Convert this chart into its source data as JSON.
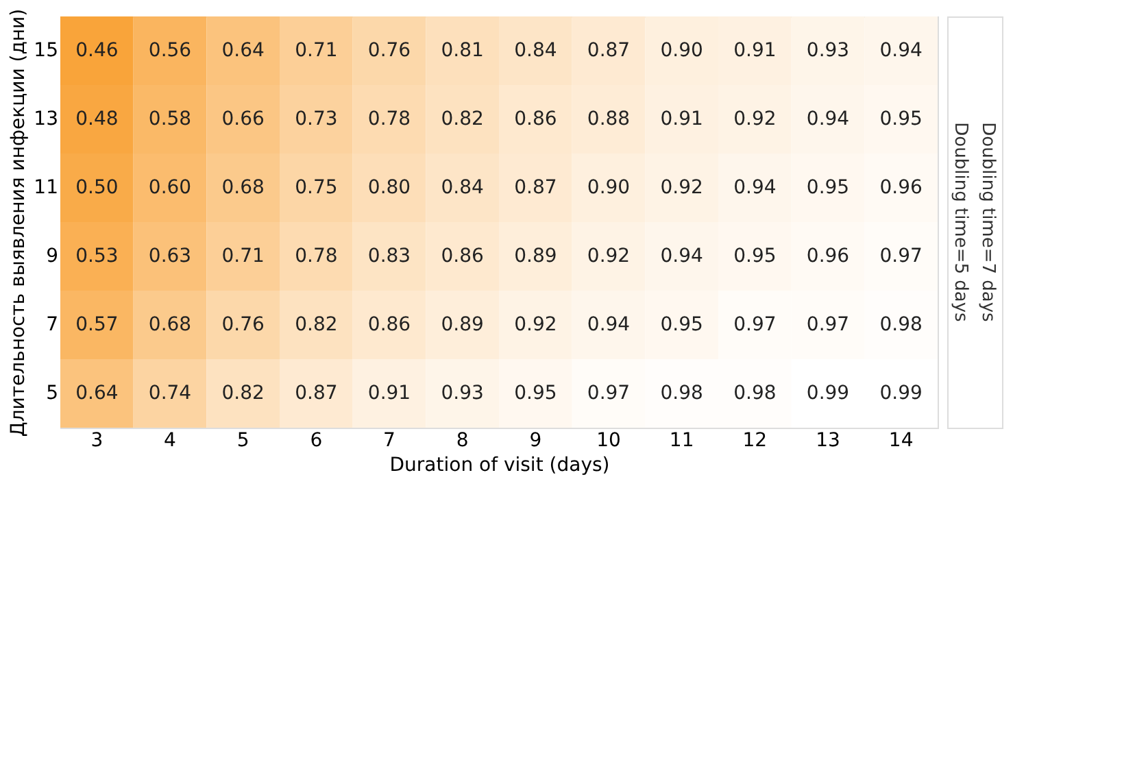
{
  "chart_data": {
    "type": "heatmap",
    "xlabel": "Duration of visit (days)",
    "ylabel": "Длительность выявления инфекции (дни)",
    "annotations": [
      "Doubling time=5 days",
      "Doubling time=7 days"
    ],
    "categories": [
      "3",
      "4",
      "5",
      "6",
      "7",
      "8",
      "9",
      "10",
      "11",
      "12",
      "13",
      "14"
    ],
    "y_categories": [
      "15",
      "13",
      "11",
      "9",
      "7",
      "5"
    ],
    "cells": [
      [
        0.46,
        0.56,
        0.64,
        0.71,
        0.76,
        0.81,
        0.84,
        0.87,
        0.9,
        0.91,
        0.93,
        0.94
      ],
      [
        0.48,
        0.58,
        0.66,
        0.73,
        0.78,
        0.82,
        0.86,
        0.88,
        0.91,
        0.92,
        0.94,
        0.95
      ],
      [
        0.5,
        0.6,
        0.68,
        0.75,
        0.8,
        0.84,
        0.87,
        0.9,
        0.92,
        0.94,
        0.95,
        0.96
      ],
      [
        0.53,
        0.63,
        0.71,
        0.78,
        0.83,
        0.86,
        0.89,
        0.92,
        0.94,
        0.95,
        0.96,
        0.97
      ],
      [
        0.57,
        0.68,
        0.76,
        0.82,
        0.86,
        0.89,
        0.92,
        0.94,
        0.95,
        0.97,
        0.97,
        0.98
      ],
      [
        0.64,
        0.74,
        0.82,
        0.87,
        0.91,
        0.93,
        0.95,
        0.97,
        0.98,
        0.98,
        0.99,
        0.99
      ]
    ],
    "data_labels": true,
    "cell_labels": [
      [
        "0.46",
        "0.56",
        "0.64",
        "0.71",
        "0.76",
        "0.81",
        "0.84",
        "0.87",
        "0.90",
        "0.91",
        "0.93",
        "0.94"
      ],
      [
        "0.48",
        "0.58",
        "0.66",
        "0.73",
        "0.78",
        "0.82",
        "0.86",
        "0.88",
        "0.91",
        "0.92",
        "0.94",
        "0.95"
      ],
      [
        "0.50",
        "0.60",
        "0.68",
        "0.75",
        "0.80",
        "0.84",
        "0.87",
        "0.90",
        "0.92",
        "0.94",
        "0.95",
        "0.96"
      ],
      [
        "0.53",
        "0.63",
        "0.71",
        "0.78",
        "0.83",
        "0.86",
        "0.89",
        "0.92",
        "0.94",
        "0.95",
        "0.96",
        "0.97"
      ],
      [
        "0.57",
        "0.68",
        "0.76",
        "0.82",
        "0.86",
        "0.89",
        "0.92",
        "0.94",
        "0.95",
        "0.97",
        "0.97",
        "0.98"
      ],
      [
        "0.64",
        "0.74",
        "0.82",
        "0.87",
        "0.91",
        "0.93",
        "0.95",
        "0.97",
        "0.98",
        "0.98",
        "0.99",
        "0.99"
      ]
    ]
  }
}
